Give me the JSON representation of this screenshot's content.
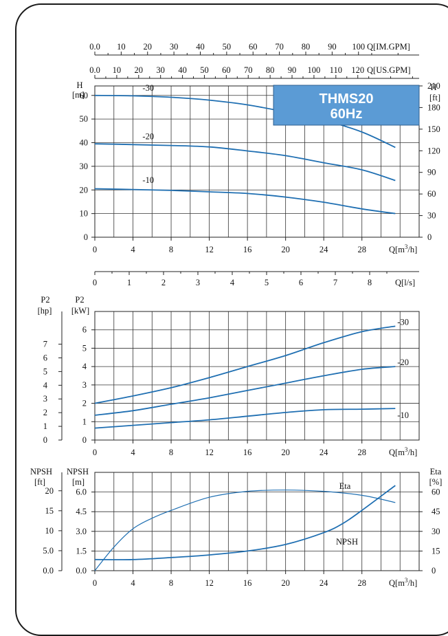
{
  "chart_data": [
    {
      "type": "line",
      "panel": "head",
      "title": "THMS20 60Hz",
      "title_lines": [
        "THMS20",
        "60Hz"
      ],
      "ylabel_left": [
        "H",
        "[m]"
      ],
      "ylabel_right": [
        "H",
        "[ft]"
      ],
      "xlabel": "Q[m³/h]",
      "xlabel_parts": {
        "base": "Q[m",
        "sup": "3",
        "tail": "/h]"
      },
      "xlim": [
        0,
        34
      ],
      "ylim": [
        0,
        64
      ],
      "grid": true,
      "x_ticks": [
        0,
        4,
        8,
        12,
        16,
        20,
        24,
        28
      ],
      "y_ticks_left": [
        0,
        10,
        20,
        30,
        40,
        50,
        60
      ],
      "y_ticks_right": [
        0,
        30,
        60,
        90,
        120,
        150,
        180,
        210
      ],
      "secondary_axes": [
        {
          "label": "Q[IM.GPM]",
          "ticks": [
            0.0,
            10,
            20,
            30,
            40,
            50,
            60,
            70,
            80,
            90,
            100
          ],
          "tick_labels": [
            "0.0",
            "10",
            "20",
            "30",
            "40",
            "50",
            "60",
            "70",
            "80",
            "90",
            "100"
          ],
          "max": 123
        },
        {
          "label": "Q[US.GPM]",
          "ticks": [
            0.0,
            10,
            20,
            30,
            40,
            50,
            60,
            70,
            80,
            90,
            100,
            110,
            120
          ],
          "tick_labels": [
            "0.0",
            "10",
            "20",
            "30",
            "40",
            "50",
            "60",
            "70",
            "80",
            "90",
            "100",
            "110",
            "120"
          ],
          "max": 148
        }
      ],
      "series": [
        {
          "name": "-30",
          "label_pos": [
            5,
            62
          ],
          "x": [
            0,
            4,
            8,
            12,
            16,
            20,
            24,
            28,
            31.5
          ],
          "y": [
            60,
            59.8,
            59.2,
            58,
            56,
            53,
            49.5,
            44.5,
            38
          ]
        },
        {
          "name": "-20",
          "label_pos": [
            5,
            41.5
          ],
          "x": [
            0,
            4,
            8,
            12,
            16,
            20,
            24,
            28,
            31.5
          ],
          "y": [
            39.5,
            39.2,
            38.8,
            38.2,
            36.5,
            34.5,
            31.5,
            28.5,
            24
          ]
        },
        {
          "name": "-10",
          "label_pos": [
            5,
            23
          ],
          "x": [
            0,
            4,
            8,
            12,
            16,
            20,
            24,
            28,
            31.5
          ],
          "y": [
            20.5,
            20.2,
            19.8,
            19.2,
            18.5,
            17,
            14.8,
            12,
            10
          ]
        }
      ]
    },
    {
      "type": "axis",
      "panel": "flow-ls",
      "xlabel": "Q[l/s]",
      "x_ticks": [
        0,
        1,
        2,
        3,
        4,
        5,
        6,
        7,
        8
      ],
      "max": 9.44
    },
    {
      "type": "line",
      "panel": "power",
      "ylabel_left_outer": [
        "P2",
        "[hp]"
      ],
      "ylabel_left_inner": [
        "P2",
        "[kW]"
      ],
      "xlabel": "Q[m³/h]",
      "xlabel_parts": {
        "base": "Q[m",
        "sup": "3",
        "tail": "/h]"
      },
      "xlim": [
        0,
        34
      ],
      "ylim": [
        0,
        7
      ],
      "grid": true,
      "x_ticks": [
        0,
        4,
        8,
        12,
        16,
        20,
        24,
        28
      ],
      "y_ticks_kw": [
        0,
        1,
        2,
        3,
        4,
        5,
        6
      ],
      "y_ticks_hp": [
        0,
        1,
        2,
        3,
        4,
        5,
        6,
        7
      ],
      "series": [
        {
          "name": "-30",
          "x": [
            0,
            4,
            8,
            12,
            16,
            20,
            24,
            28,
            31.5
          ],
          "y": [
            2.0,
            2.4,
            2.85,
            3.4,
            4.0,
            4.6,
            5.3,
            5.9,
            6.2
          ]
        },
        {
          "name": "-20",
          "x": [
            0,
            4,
            8,
            12,
            16,
            20,
            24,
            28,
            31.5
          ],
          "y": [
            1.35,
            1.6,
            1.95,
            2.3,
            2.7,
            3.1,
            3.5,
            3.85,
            4.0
          ]
        },
        {
          "name": "-10",
          "x": [
            0,
            4,
            8,
            12,
            16,
            20,
            24,
            28,
            31.5
          ],
          "y": [
            0.65,
            0.8,
            0.95,
            1.1,
            1.3,
            1.5,
            1.65,
            1.68,
            1.72
          ]
        }
      ]
    },
    {
      "type": "line",
      "panel": "npsh-eta",
      "ylabel_left_outer": [
        "NPSH",
        "[ft]"
      ],
      "ylabel_left_inner": [
        "NPSH",
        "[m]"
      ],
      "ylabel_right": [
        "Eta",
        "[%]"
      ],
      "xlabel": "Q[m³/h]",
      "xlabel_parts": {
        "base": "Q[m",
        "sup": "3",
        "tail": "/h]"
      },
      "xlim": [
        0,
        34
      ],
      "ylim": [
        0,
        7.5
      ],
      "grid": true,
      "x_ticks": [
        0,
        4,
        8,
        12,
        16,
        20,
        24,
        28
      ],
      "y_ticks_m": [
        "0.0",
        "1.5",
        "3.0",
        "4.5",
        "6.0"
      ],
      "y_ticks_ft": [
        "0.0",
        "5.0",
        "10",
        "15",
        "20"
      ],
      "y_ticks_eta": [
        0,
        15,
        30,
        45,
        60
      ],
      "series": [
        {
          "name": "Eta",
          "unit": "%",
          "x": [
            0,
            2,
            4,
            6,
            8,
            12,
            16,
            20,
            24,
            28,
            31.5
          ],
          "y": [
            0,
            18,
            32,
            40,
            46,
            56,
            60.5,
            61.5,
            60.5,
            57.5,
            52
          ]
        },
        {
          "name": "NPSH",
          "unit": "m",
          "x": [
            0,
            4,
            8,
            12,
            16,
            20,
            24,
            26,
            28,
            31.5
          ],
          "y": [
            0.85,
            0.85,
            1.0,
            1.2,
            1.5,
            2.0,
            2.9,
            3.6,
            4.6,
            6.5
          ]
        }
      ],
      "series_labels": {
        "Eta": "Eta",
        "NPSH": "NPSH"
      }
    }
  ]
}
